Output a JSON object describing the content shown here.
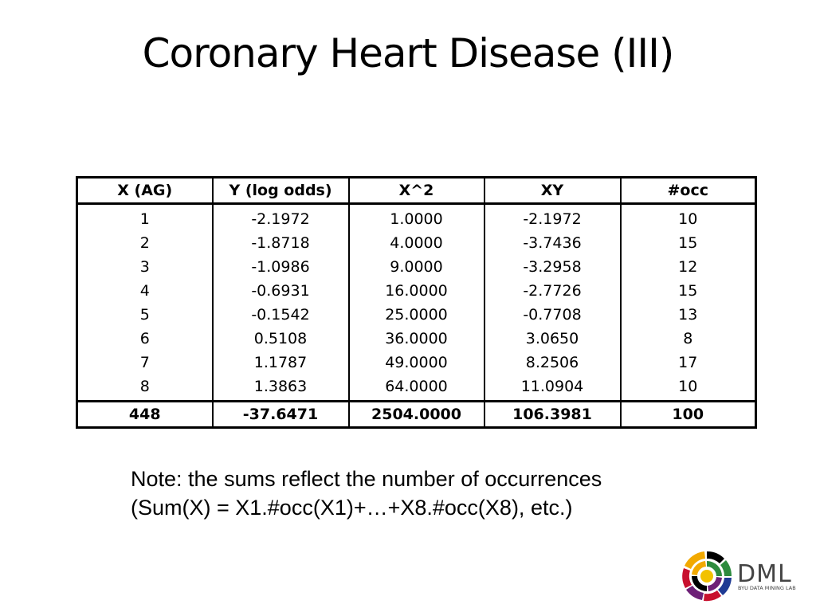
{
  "slide": {
    "title": "Coronary Heart Disease (III)"
  },
  "table": {
    "headers": [
      "X (AG)",
      "Y (log odds)",
      "X^2",
      "XY",
      "#occ"
    ],
    "rows": [
      [
        "1",
        "-2.1972",
        "1.0000",
        "-2.1972",
        "10"
      ],
      [
        "2",
        "-1.8718",
        "4.0000",
        "-3.7436",
        "15"
      ],
      [
        "3",
        "-1.0986",
        "9.0000",
        "-3.2958",
        "12"
      ],
      [
        "4",
        "-0.6931",
        "16.0000",
        "-2.7726",
        "15"
      ],
      [
        "5",
        "-0.1542",
        "25.0000",
        "-0.7708",
        "13"
      ],
      [
        "6",
        "0.5108",
        "36.0000",
        "3.0650",
        "8"
      ],
      [
        "7",
        "1.1787",
        "49.0000",
        "8.2506",
        "17"
      ],
      [
        "8",
        "1.3863",
        "64.0000",
        "11.0904",
        "10"
      ]
    ],
    "totals": [
      "448",
      "-37.6471",
      "2504.0000",
      "106.3981",
      "100"
    ]
  },
  "note": {
    "line1": "Note: the sums reflect the number of occurrences",
    "line2": "(Sum(X) = X1.#occ(X1)+…+X8.#occ(X8), etc.)"
  },
  "logo": {
    "name": "DML",
    "subtitle": "BYU DATA MINING LAB",
    "colors": [
      "#c8102e",
      "#f2a900",
      "#2e8b3e",
      "#1f3a93",
      "#6d2077",
      "#000000"
    ]
  }
}
